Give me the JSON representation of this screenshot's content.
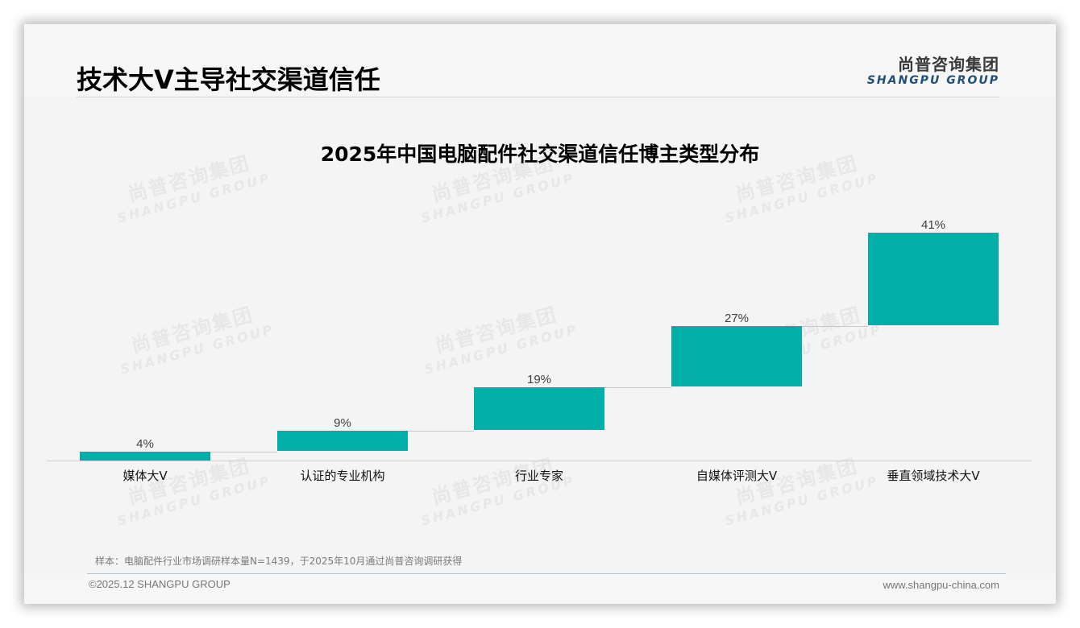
{
  "header": {
    "title": "技术大V主导社交渠道信任",
    "logo_cn": "尚普咨询集团",
    "logo_en": "SHANGPU GROUP"
  },
  "watermark": {
    "cn": "尚普咨询集团",
    "en": "SHANGPU GROUP"
  },
  "colors": {
    "bar": "#00b0a8",
    "logo_en": "#1f4e79",
    "background": "#f4f4f4"
  },
  "chart_data": {
    "type": "bar",
    "subtype": "waterfall",
    "title": "2025年中国电脑配件社交渠道信任博主类型分布",
    "categories": [
      "媒体大V",
      "认证的专业机构",
      "行业专家",
      "自媒体评测大V",
      "垂直领域技术大V"
    ],
    "values": [
      4,
      9,
      19,
      27,
      41
    ],
    "value_labels": [
      "4%",
      "9%",
      "19%",
      "27%",
      "41%"
    ],
    "cumulative_start": [
      0,
      4,
      13,
      32,
      59
    ],
    "cumulative_end": [
      4,
      13,
      32,
      59,
      100
    ],
    "unit": "%",
    "xlabel": "",
    "ylabel": "",
    "ylim": [
      0,
      100
    ],
    "grid": false,
    "legend": "none",
    "series_color": "#00b0a8"
  },
  "footer": {
    "note": "样本：电脑配件行业市场调研样本量N=1439，于2025年10月通过尚普咨询调研获得",
    "copyright": "©2025.12 SHANGPU GROUP",
    "website": "www.shangpu-china.com"
  }
}
